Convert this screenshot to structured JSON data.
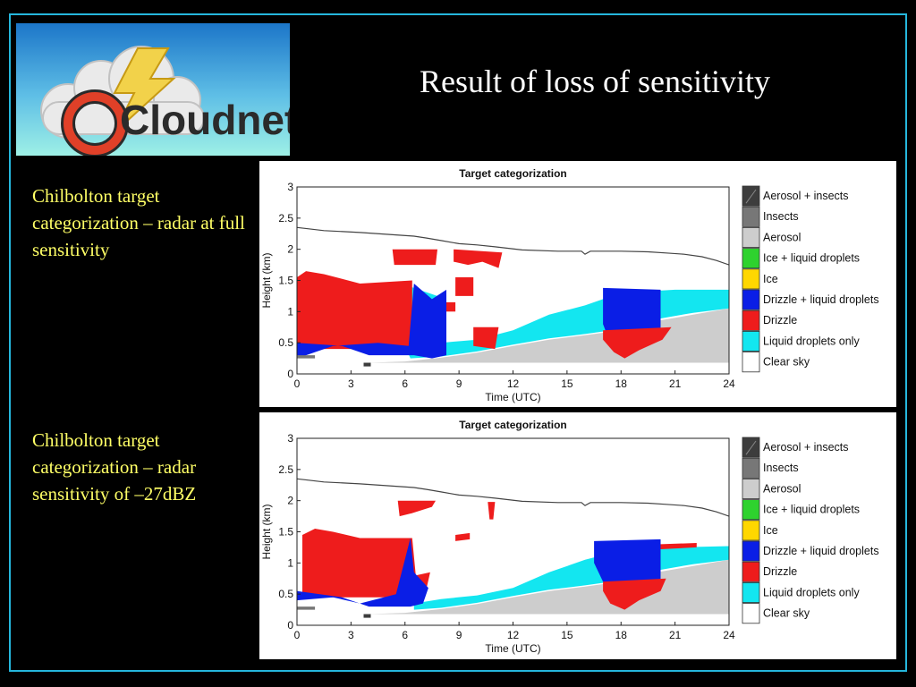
{
  "logo": {
    "text": "Cloudnet",
    "icon": "cloud-lightning-logo"
  },
  "slide_title": "Result of loss of sensitivity",
  "captions": [
    {
      "text": "Chilbolton target categorization – radar at full sensitivity"
    },
    {
      "text": "Chilbolton target categorization – radar sensitivity of –27dBZ"
    }
  ],
  "chart_data": [
    {
      "type": "heatmap",
      "title": "Target categorization",
      "xlabel": "Time (UTC)",
      "ylabel": "Height (km)",
      "xlim": [
        0,
        24
      ],
      "ylim": [
        0,
        3
      ],
      "xticks": [
        0,
        3,
        6,
        9,
        12,
        15,
        18,
        21,
        24
      ],
      "yticks": [
        0,
        0.5,
        1,
        1.5,
        2,
        2.5,
        3
      ],
      "ytick_labels": [
        "0",
        "0.5",
        "1",
        "1.5",
        "2",
        "2.5",
        "3"
      ],
      "legend": [
        {
          "label": "Aerosol + insects",
          "color": "#3d3d3d"
        },
        {
          "label": "Insects",
          "color": "#777777"
        },
        {
          "label": "Aerosol",
          "color": "#cdcdcd"
        },
        {
          "label": "Ice + liquid droplets",
          "color": "#2ed22e"
        },
        {
          "label": "Ice",
          "color": "#ffd700"
        },
        {
          "label": "Drizzle + liquid droplets",
          "color": "#0a1ee6"
        },
        {
          "label": "Drizzle",
          "color": "#ee1c1c"
        },
        {
          "label": "Liquid droplets only",
          "color": "#13e6f0"
        },
        {
          "label": "Clear sky",
          "color": "#ffffff"
        }
      ],
      "boundary_line": {
        "time": [
          0,
          0.6,
          1.5,
          3.5,
          6.5,
          7.2,
          8,
          9,
          10,
          11,
          12.5,
          14.5,
          15.8,
          16,
          16.3,
          18,
          19.5,
          20.5,
          21.5,
          22.5,
          23.3,
          24
        ],
        "height": [
          2.35,
          2.33,
          2.3,
          2.27,
          2.21,
          2.18,
          2.14,
          2.09,
          2.07,
          2.04,
          1.99,
          1.97,
          1.97,
          1.92,
          1.97,
          1.97,
          1.96,
          1.94,
          1.92,
          1.88,
          1.82,
          1.75
        ]
      },
      "regions": [
        {
          "category": "Aerosol",
          "polygon": [
            [
              0,
              0.18
            ],
            [
              4,
              0.18
            ],
            [
              6,
              0.2
            ],
            [
              8,
              0.26
            ],
            [
              10,
              0.34
            ],
            [
              12,
              0.45
            ],
            [
              14,
              0.55
            ],
            [
              16,
              0.62
            ],
            [
              18,
              0.7
            ],
            [
              20,
              0.85
            ],
            [
              22,
              0.95
            ],
            [
              24,
              1.05
            ],
            [
              24,
              0.18
            ]
          ]
        },
        {
          "category": "Liquid droplets only",
          "polygon": [
            [
              6,
              0.45
            ],
            [
              8,
              0.5
            ],
            [
              10,
              0.55
            ],
            [
              12,
              0.7
            ],
            [
              14,
              0.95
            ],
            [
              16,
              1.1
            ],
            [
              18,
              1.3
            ],
            [
              21,
              1.35
            ],
            [
              24,
              1.35
            ],
            [
              24,
              1.05
            ],
            [
              22,
              0.98
            ],
            [
              20,
              0.88
            ],
            [
              18,
              0.72
            ],
            [
              16,
              0.64
            ],
            [
              14,
              0.57
            ],
            [
              12,
              0.47
            ],
            [
              10,
              0.36
            ],
            [
              8,
              0.28
            ],
            [
              6.3,
              0.25
            ]
          ]
        },
        {
          "category": "Liquid droplets only",
          "polygon": [
            [
              6.3,
              1.4
            ],
            [
              8.3,
              1.2
            ],
            [
              8.3,
              0.6
            ],
            [
              6.3,
              0.45
            ]
          ]
        },
        {
          "category": "Drizzle",
          "polygon": [
            [
              0,
              1.55
            ],
            [
              0.5,
              1.65
            ],
            [
              1.5,
              1.6
            ],
            [
              3.5,
              1.45
            ],
            [
              6.4,
              1.5
            ],
            [
              6.4,
              0.4
            ],
            [
              0,
              0.4
            ]
          ]
        },
        {
          "category": "Drizzle + liquid droplets",
          "polygon": [
            [
              0,
              0.5
            ],
            [
              2.5,
              0.45
            ],
            [
              4,
              0.3
            ],
            [
              6.5,
              0.3
            ],
            [
              7.5,
              0.25
            ],
            [
              8.3,
              0.3
            ],
            [
              8.3,
              1.35
            ],
            [
              7.5,
              1.2
            ],
            [
              6.5,
              1.45
            ],
            [
              6.2,
              0.45
            ],
            [
              4.5,
              0.5
            ],
            [
              2,
              0.45
            ],
            [
              0,
              0.25
            ]
          ]
        },
        {
          "category": "Drizzle + liquid droplets",
          "polygon": [
            [
              17,
              1.38
            ],
            [
              20.2,
              1.35
            ],
            [
              20.2,
              0.7
            ],
            [
              19.5,
              0.6
            ],
            [
              18,
              0.6
            ],
            [
              17.2,
              0.65
            ],
            [
              17,
              0.8
            ]
          ]
        },
        {
          "category": "Drizzle",
          "polygon": [
            [
              17,
              0.7
            ],
            [
              20.8,
              0.75
            ],
            [
              20.3,
              0.55
            ],
            [
              19,
              0.38
            ],
            [
              18.2,
              0.25
            ],
            [
              17.6,
              0.35
            ],
            [
              17,
              0.55
            ]
          ]
        },
        {
          "category": "Drizzle",
          "polygon": [
            [
              5.3,
              2.0
            ],
            [
              7.8,
              2.0
            ],
            [
              7.7,
              1.75
            ],
            [
              5.4,
              1.75
            ]
          ]
        },
        {
          "category": "Drizzle",
          "polygon": [
            [
              8.7,
              2.0
            ],
            [
              11.4,
              1.95
            ],
            [
              11.2,
              1.7
            ],
            [
              10.3,
              1.8
            ],
            [
              9.5,
              1.75
            ],
            [
              8.7,
              1.8
            ]
          ]
        },
        {
          "category": "Drizzle",
          "polygon": [
            [
              8.8,
              1.55
            ],
            [
              9.8,
              1.55
            ],
            [
              9.8,
              1.25
            ],
            [
              8.8,
              1.25
            ]
          ]
        },
        {
          "category": "Drizzle",
          "polygon": [
            [
              8.3,
              1.15
            ],
            [
              8.8,
              1.15
            ],
            [
              8.8,
              1.0
            ],
            [
              8.3,
              1.0
            ]
          ]
        },
        {
          "category": "Drizzle",
          "polygon": [
            [
              9.8,
              0.75
            ],
            [
              11.2,
              0.75
            ],
            [
              11.0,
              0.4
            ],
            [
              9.8,
              0.45
            ]
          ]
        },
        {
          "category": "Insects",
          "polygon": [
            [
              0,
              0.3
            ],
            [
              1,
              0.3
            ],
            [
              1,
              0.25
            ],
            [
              0,
              0.25
            ]
          ]
        },
        {
          "category": "Aerosol + insects",
          "polygon": [
            [
              3.7,
              0.18
            ],
            [
              4.1,
              0.18
            ],
            [
              4.1,
              0.12
            ],
            [
              3.7,
              0.12
            ]
          ]
        }
      ]
    },
    {
      "type": "heatmap",
      "title": "Target categorization",
      "xlabel": "Time (UTC)",
      "ylabel": "Height (km)",
      "xlim": [
        0,
        24
      ],
      "ylim": [
        0,
        3
      ],
      "xticks": [
        0,
        3,
        6,
        9,
        12,
        15,
        18,
        21,
        24
      ],
      "yticks": [
        0,
        0.5,
        1,
        1.5,
        2,
        2.5,
        3
      ],
      "ytick_labels": [
        "0",
        "0.5",
        "1",
        "1.5",
        "2",
        "2.5",
        "3"
      ],
      "legend": [
        {
          "label": "Aerosol + insects",
          "color": "#3d3d3d"
        },
        {
          "label": "Insects",
          "color": "#777777"
        },
        {
          "label": "Aerosol",
          "color": "#cdcdcd"
        },
        {
          "label": "Ice + liquid droplets",
          "color": "#2ed22e"
        },
        {
          "label": "Ice",
          "color": "#ffd700"
        },
        {
          "label": "Drizzle + liquid droplets",
          "color": "#0a1ee6"
        },
        {
          "label": "Drizzle",
          "color": "#ee1c1c"
        },
        {
          "label": "Liquid droplets only",
          "color": "#13e6f0"
        },
        {
          "label": "Clear sky",
          "color": "#ffffff"
        }
      ],
      "boundary_line": {
        "time": [
          0,
          0.6,
          1.5,
          3.5,
          6.5,
          7.2,
          8,
          9,
          10,
          11,
          12.5,
          14.5,
          15.8,
          16,
          16.3,
          18,
          19.5,
          20.5,
          21.5,
          22.5,
          23.3,
          24
        ],
        "height": [
          2.35,
          2.33,
          2.3,
          2.27,
          2.21,
          2.18,
          2.14,
          2.09,
          2.07,
          2.04,
          1.99,
          1.97,
          1.97,
          1.92,
          1.97,
          1.97,
          1.96,
          1.94,
          1.92,
          1.88,
          1.82,
          1.75
        ]
      },
      "regions": [
        {
          "category": "Aerosol",
          "polygon": [
            [
              0,
              0.18
            ],
            [
              4,
              0.18
            ],
            [
              6,
              0.2
            ],
            [
              8,
              0.26
            ],
            [
              10,
              0.34
            ],
            [
              12,
              0.45
            ],
            [
              14,
              0.55
            ],
            [
              16,
              0.62
            ],
            [
              18,
              0.7
            ],
            [
              20,
              0.85
            ],
            [
              22,
              0.95
            ],
            [
              24,
              1.05
            ],
            [
              24,
              0.18
            ]
          ]
        },
        {
          "category": "Liquid droplets only",
          "polygon": [
            [
              6.5,
              0.35
            ],
            [
              8,
              0.42
            ],
            [
              10,
              0.48
            ],
            [
              12,
              0.6
            ],
            [
              14,
              0.85
            ],
            [
              16,
              1.05
            ],
            [
              18,
              1.2
            ],
            [
              21,
              1.25
            ],
            [
              24,
              1.27
            ],
            [
              24,
              1.05
            ],
            [
              22,
              0.98
            ],
            [
              20,
              0.88
            ],
            [
              18,
              0.72
            ],
            [
              16,
              0.64
            ],
            [
              14,
              0.57
            ],
            [
              12,
              0.47
            ],
            [
              10,
              0.36
            ],
            [
              8,
              0.28
            ],
            [
              6.5,
              0.25
            ]
          ]
        },
        {
          "category": "Drizzle",
          "polygon": [
            [
              0.3,
              1.45
            ],
            [
              1,
              1.55
            ],
            [
              2,
              1.5
            ],
            [
              3.5,
              1.4
            ],
            [
              6.4,
              1.4
            ],
            [
              6.6,
              0.8
            ],
            [
              7.4,
              0.85
            ],
            [
              7.2,
              0.6
            ],
            [
              6.4,
              0.45
            ],
            [
              0.3,
              0.45
            ]
          ]
        },
        {
          "category": "Drizzle + liquid droplets",
          "polygon": [
            [
              0,
              0.55
            ],
            [
              2.5,
              0.45
            ],
            [
              4,
              0.3
            ],
            [
              6.3,
              0.3
            ],
            [
              7,
              0.35
            ],
            [
              7.3,
              0.6
            ],
            [
              6.5,
              0.85
            ],
            [
              6.3,
              1.4
            ],
            [
              5.5,
              0.5
            ],
            [
              3.5,
              0.35
            ],
            [
              2,
              0.45
            ],
            [
              0,
              0.4
            ]
          ]
        },
        {
          "category": "Drizzle + liquid droplets",
          "polygon": [
            [
              16.5,
              1.35
            ],
            [
              20.2,
              1.38
            ],
            [
              20.2,
              0.7
            ],
            [
              19.5,
              0.6
            ],
            [
              18,
              0.6
            ],
            [
              17,
              0.7
            ],
            [
              16.5,
              1.0
            ]
          ]
        },
        {
          "category": "Drizzle",
          "polygon": [
            [
              17,
              0.7
            ],
            [
              20.5,
              0.75
            ],
            [
              20.2,
              0.55
            ],
            [
              19,
              0.4
            ],
            [
              18.2,
              0.25
            ],
            [
              17.4,
              0.35
            ],
            [
              17,
              0.55
            ]
          ]
        },
        {
          "category": "Drizzle",
          "polygon": [
            [
              20.2,
              1.3
            ],
            [
              22.2,
              1.32
            ],
            [
              22.2,
              1.25
            ],
            [
              20.2,
              1.22
            ]
          ]
        },
        {
          "category": "Drizzle",
          "polygon": [
            [
              5.6,
              2.0
            ],
            [
              7.7,
              2.0
            ],
            [
              7.5,
              1.9
            ],
            [
              6.4,
              1.8
            ],
            [
              5.7,
              1.75
            ]
          ]
        },
        {
          "category": "Drizzle",
          "polygon": [
            [
              10.6,
              1.98
            ],
            [
              11.0,
              1.98
            ],
            [
              10.9,
              1.7
            ],
            [
              10.7,
              1.7
            ]
          ]
        },
        {
          "category": "Drizzle",
          "polygon": [
            [
              8.8,
              1.45
            ],
            [
              9.6,
              1.48
            ],
            [
              9.6,
              1.38
            ],
            [
              8.8,
              1.35
            ]
          ]
        },
        {
          "category": "Insects",
          "polygon": [
            [
              0,
              0.3
            ],
            [
              1,
              0.3
            ],
            [
              1,
              0.25
            ],
            [
              0,
              0.25
            ]
          ]
        },
        {
          "category": "Aerosol + insects",
          "polygon": [
            [
              3.7,
              0.18
            ],
            [
              4.1,
              0.18
            ],
            [
              4.1,
              0.12
            ],
            [
              3.7,
              0.12
            ]
          ]
        }
      ]
    }
  ]
}
